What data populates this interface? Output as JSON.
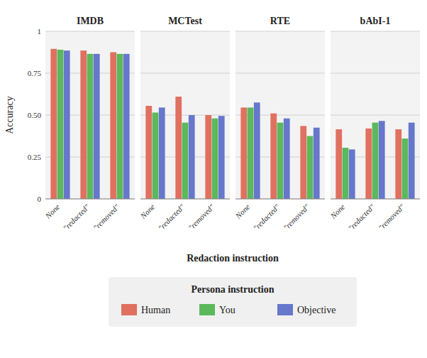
{
  "chart_data": [
    {
      "type": "bar",
      "title": "IMDB",
      "categories": [
        "None",
        "\"redacted\"",
        "\"removed\""
      ],
      "series": [
        {
          "name": "Human",
          "color": "#e07060",
          "values": [
            0.895,
            0.885,
            0.875
          ]
        },
        {
          "name": "You",
          "color": "#5cb85c",
          "values": [
            0.89,
            0.865,
            0.865
          ]
        },
        {
          "name": "Objective",
          "color": "#6677cc",
          "values": [
            0.885,
            0.865,
            0.865
          ]
        }
      ],
      "y_label": "Accuracy",
      "x_label": "Redaction instruction",
      "legend_title": "Persona instruction",
      "legend": "bottom",
      "ylim": [
        0,
        1.0
      ],
      "yticks": [
        0,
        0.25,
        {
          "value": 0.5,
          "label": "0.50"
        },
        0.75,
        1
      ],
      "grid": true
    },
    {
      "type": "bar",
      "title": "MCTest",
      "categories": [
        "None",
        "\"redacted\"",
        "\"removed\""
      ],
      "series": [
        {
          "name": "Human",
          "color": "#e07060",
          "values": [
            0.555,
            0.61,
            0.5
          ]
        },
        {
          "name": "You",
          "color": "#5cb85c",
          "values": [
            0.515,
            0.455,
            0.48
          ]
        },
        {
          "name": "Objective",
          "color": "#6677cc",
          "values": [
            0.545,
            0.5,
            0.495
          ]
        }
      ],
      "ylim": [
        0,
        1.0
      ],
      "yticks": [
        0,
        0.25,
        {
          "value": 0.5,
          "label": "0.50"
        },
        0.75,
        1
      ],
      "grid": true,
      "tick_labels": "x"
    },
    {
      "type": "bar",
      "title": "RTE",
      "categories": [
        "None",
        "\"redacted\"",
        "\"removed\""
      ],
      "series": [
        {
          "name": "Human",
          "color": "#e07060",
          "values": [
            0.545,
            0.51,
            0.435
          ]
        },
        {
          "name": "You",
          "color": "#5cb85c",
          "values": [
            0.545,
            0.455,
            0.375
          ]
        },
        {
          "name": "Objective",
          "color": "#6677cc",
          "values": [
            0.575,
            0.48,
            0.425
          ]
        }
      ],
      "ylim": [
        0,
        1.0
      ],
      "yticks": [
        0,
        0.25,
        {
          "value": 0.5,
          "label": "0.50"
        },
        0.75,
        1
      ],
      "grid": true,
      "tick_labels": "x"
    },
    {
      "type": "bar",
      "title": "bAbI-1",
      "categories": [
        "None",
        "\"redacted\"",
        "\"removed\""
      ],
      "series": [
        {
          "name": "Human",
          "color": "#e07060",
          "values": [
            0.415,
            0.42,
            0.415
          ]
        },
        {
          "name": "You",
          "color": "#5cb85c",
          "values": [
            0.305,
            0.455,
            0.36
          ]
        },
        {
          "name": "Objective",
          "color": "#6677cc",
          "values": [
            0.295,
            0.465,
            0.455
          ]
        }
      ],
      "ylim": [
        0,
        1.0
      ],
      "yticks": [
        0,
        0.25,
        {
          "value": 0.5,
          "label": "0.50"
        },
        0.75,
        1
      ],
      "grid": true,
      "tick_labels": "x"
    }
  ]
}
